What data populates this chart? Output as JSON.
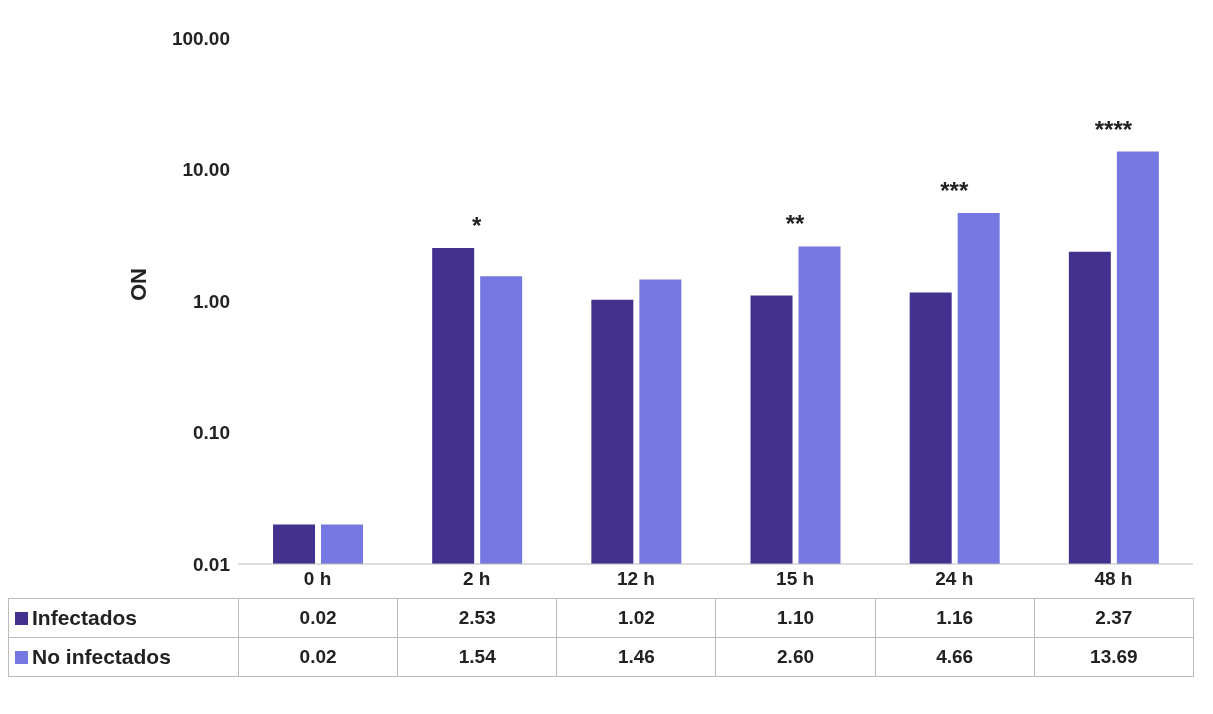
{
  "chart_data": {
    "type": "bar",
    "ylabel": "ON",
    "categories": [
      "0 h",
      "2 h",
      "12 h",
      "15 h",
      "24 h",
      "48 h"
    ],
    "series": [
      {
        "name": "Infectados",
        "color": "#44318f",
        "values": [
          0.02,
          2.53,
          1.02,
          1.1,
          1.16,
          2.37
        ],
        "value_labels": [
          "0.02",
          "2.53",
          "1.02",
          "1.10",
          "1.16",
          "2.37"
        ]
      },
      {
        "name": "No infectados",
        "color": "#7478e0",
        "values": [
          0.02,
          1.54,
          1.46,
          2.6,
          4.66,
          13.69
        ],
        "value_labels": [
          "0.02",
          "1.54",
          "1.46",
          "2.60",
          "4.66",
          "13.69"
        ]
      }
    ],
    "log": true,
    "ylim": [
      0.01,
      100
    ],
    "yticks": [
      {
        "value": 0.01,
        "label": "0.01"
      },
      {
        "value": 0.1,
        "label": "0.10"
      },
      {
        "value": 1,
        "label": "1.00"
      },
      {
        "value": 10,
        "label": "10.00"
      },
      {
        "value": 100,
        "label": "100.00"
      }
    ],
    "grid": false,
    "legend": "bottom",
    "annotations": [
      {
        "text": "*",
        "x": "2 h",
        "y": 2.53
      },
      {
        "text": "**",
        "x": "15 h",
        "y": 2.6
      },
      {
        "text": "***",
        "x": "24 h",
        "y": 4.66
      },
      {
        "text": "****",
        "x": "48 h",
        "y": 13.69
      }
    ]
  }
}
